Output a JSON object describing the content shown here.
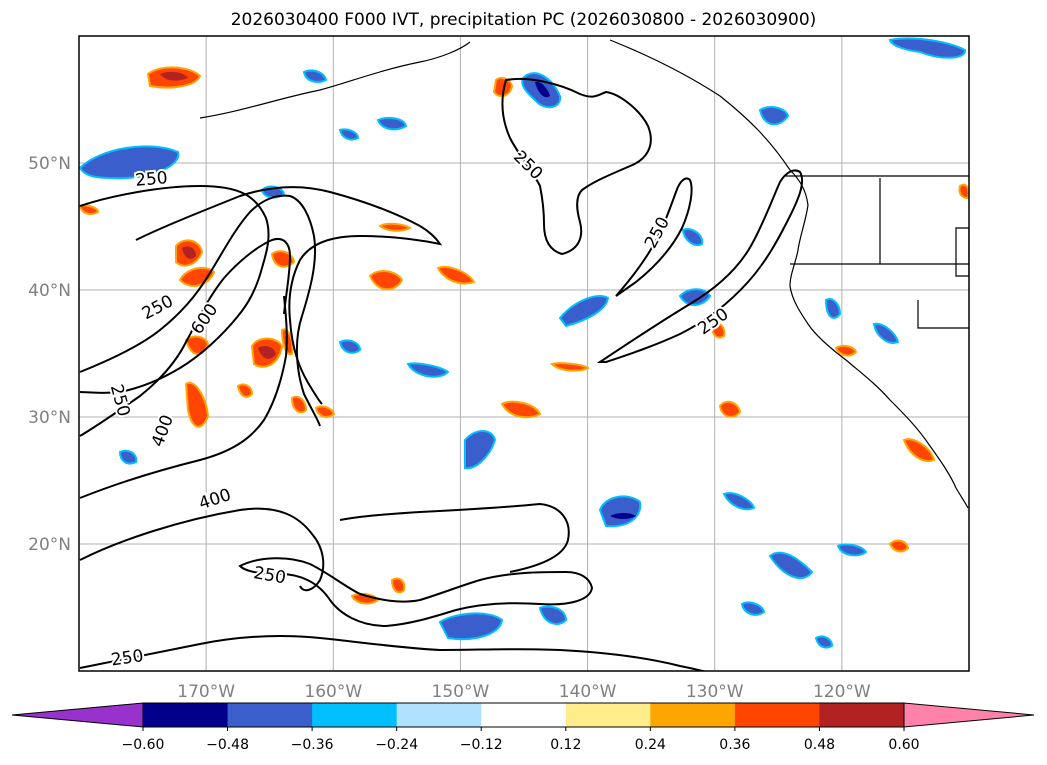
{
  "title": "2026030400 F000 IVT, precipitation PC (2026030800 - 2026030900)",
  "map": {
    "lon_range": [
      -180,
      -110
    ],
    "lat_range": [
      10,
      60
    ],
    "lat_ticks": [
      {
        "value": 50,
        "label": "50°N"
      },
      {
        "value": 40,
        "label": "40°N"
      },
      {
        "value": 30,
        "label": "30°N"
      },
      {
        "value": 20,
        "label": "20°N"
      }
    ],
    "lon_ticks": [
      {
        "value": -170,
        "label": "170°W"
      },
      {
        "value": -160,
        "label": "160°W"
      },
      {
        "value": -150,
        "label": "150°W"
      },
      {
        "value": -140,
        "label": "140°W"
      },
      {
        "value": -130,
        "label": "130°W"
      },
      {
        "value": -120,
        "label": "120°W"
      }
    ],
    "contour_labels": [
      {
        "text": "250",
        "lon": -174.3,
        "lat": 48.7,
        "rot": -5
      },
      {
        "text": "250",
        "lon": -173.8,
        "lat": 38.6,
        "rot": -28
      },
      {
        "text": "600",
        "lon": -170.1,
        "lat": 37.7,
        "rot": -55
      },
      {
        "text": "250",
        "lon": -176.8,
        "lat": 31.3,
        "rot": 75
      },
      {
        "text": "400",
        "lon": -173.4,
        "lat": 28.9,
        "rot": -70
      },
      {
        "text": "400",
        "lon": -169.3,
        "lat": 23.5,
        "rot": -18
      },
      {
        "text": "250",
        "lon": -165.0,
        "lat": 17.5,
        "rot": 10
      },
      {
        "text": "250",
        "lon": -176.2,
        "lat": 11.0,
        "rot": -8
      },
      {
        "text": "250",
        "lon": -144.7,
        "lat": 49.8,
        "rot": 45
      },
      {
        "text": "250",
        "lon": -134.5,
        "lat": 44.5,
        "rot": -62
      },
      {
        "text": "250",
        "lon": -130.1,
        "lat": 37.5,
        "rot": -35
      }
    ]
  },
  "colorbar": {
    "levels": [
      {
        "value": -0.6,
        "label": "−0.60"
      },
      {
        "value": -0.48,
        "label": "−0.48"
      },
      {
        "value": -0.36,
        "label": "−0.36"
      },
      {
        "value": -0.24,
        "label": "−0.24"
      },
      {
        "value": -0.12,
        "label": "−0.12"
      },
      {
        "value": 0.12,
        "label": "0.12"
      },
      {
        "value": 0.24,
        "label": "0.24"
      },
      {
        "value": 0.36,
        "label": "0.36"
      },
      {
        "value": 0.48,
        "label": "0.48"
      },
      {
        "value": 0.6,
        "label": "0.60"
      }
    ],
    "colors": [
      "#9932cc",
      "#00008b",
      "#3a5fcd",
      "#00bfff",
      "#b0e2ff",
      "#ffffff",
      "#ffec8b",
      "#ffa500",
      "#ff4500",
      "#b22222",
      "#ff82ab"
    ]
  }
}
